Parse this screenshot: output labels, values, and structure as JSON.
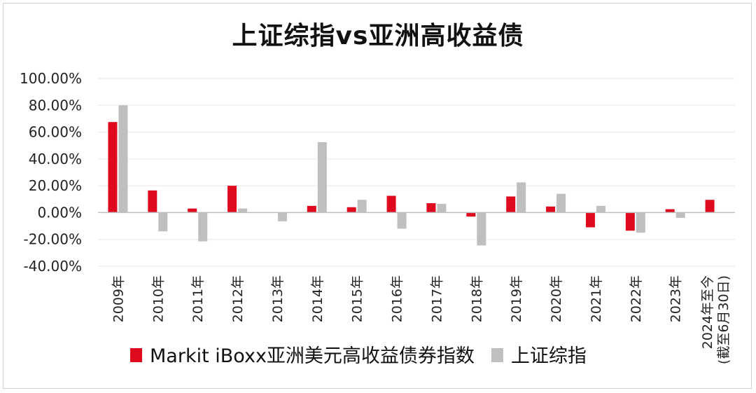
{
  "chart_data": {
    "type": "bar",
    "title": "上证综指vs亚洲高收益债",
    "categories": [
      "2009年",
      "2010年",
      "2011年",
      "2012年",
      "2013年",
      "2014年",
      "2015年",
      "2016年",
      "2017年",
      "2018年",
      "2019年",
      "2020年",
      "2021年",
      "2022年",
      "2023年",
      [
        "2024年至今",
        "(截至6月30日)"
      ]
    ],
    "series": [
      {
        "name": "Markit iBoxx亚洲美元高收益债券指数",
        "color": "#e00a1e",
        "values": [
          67.5,
          16.5,
          3.0,
          20.0,
          0.0,
          5.0,
          4.0,
          12.5,
          7.0,
          -3.0,
          12.0,
          4.5,
          -11.0,
          -13.5,
          2.5,
          9.5
        ]
      },
      {
        "name": "上证综指",
        "color": "#bfbfbf",
        "values": [
          80.0,
          -14.0,
          -21.5,
          3.0,
          -6.5,
          52.5,
          9.5,
          -12.0,
          6.5,
          -24.5,
          22.5,
          14.0,
          5.0,
          -15.0,
          -4.0,
          0.0
        ]
      }
    ],
    "yticks": [
      "100.00%",
      "80.00%",
      "60.00%",
      "40.00%",
      "20.00%",
      "0.00%",
      "-20.00%",
      "-40.00%"
    ],
    "ylim": [
      -40,
      100
    ],
    "grid": true,
    "legend": "bottom"
  }
}
